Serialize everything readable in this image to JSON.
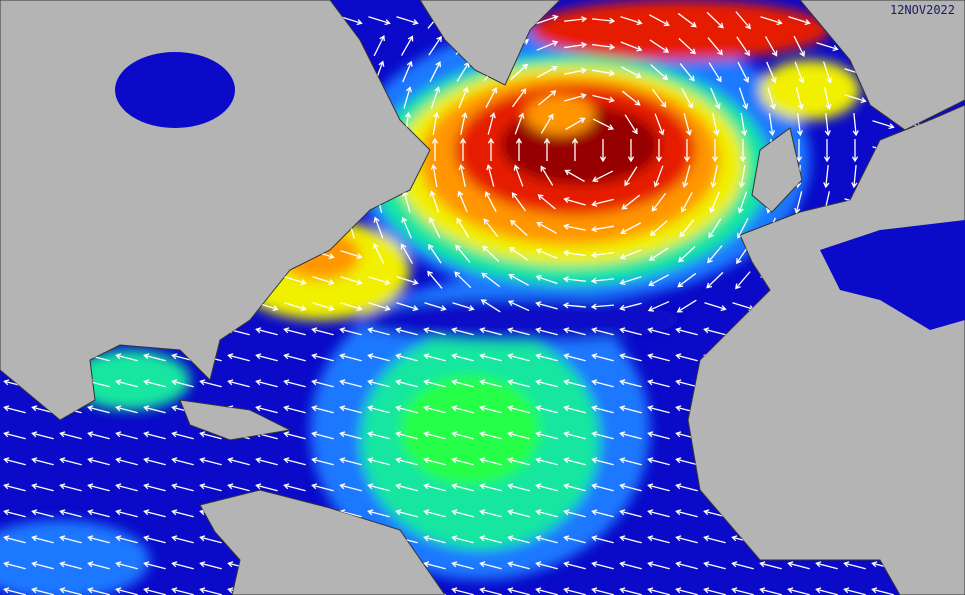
{
  "map": {
    "timestamp": "12NOV2022"
  }
}
